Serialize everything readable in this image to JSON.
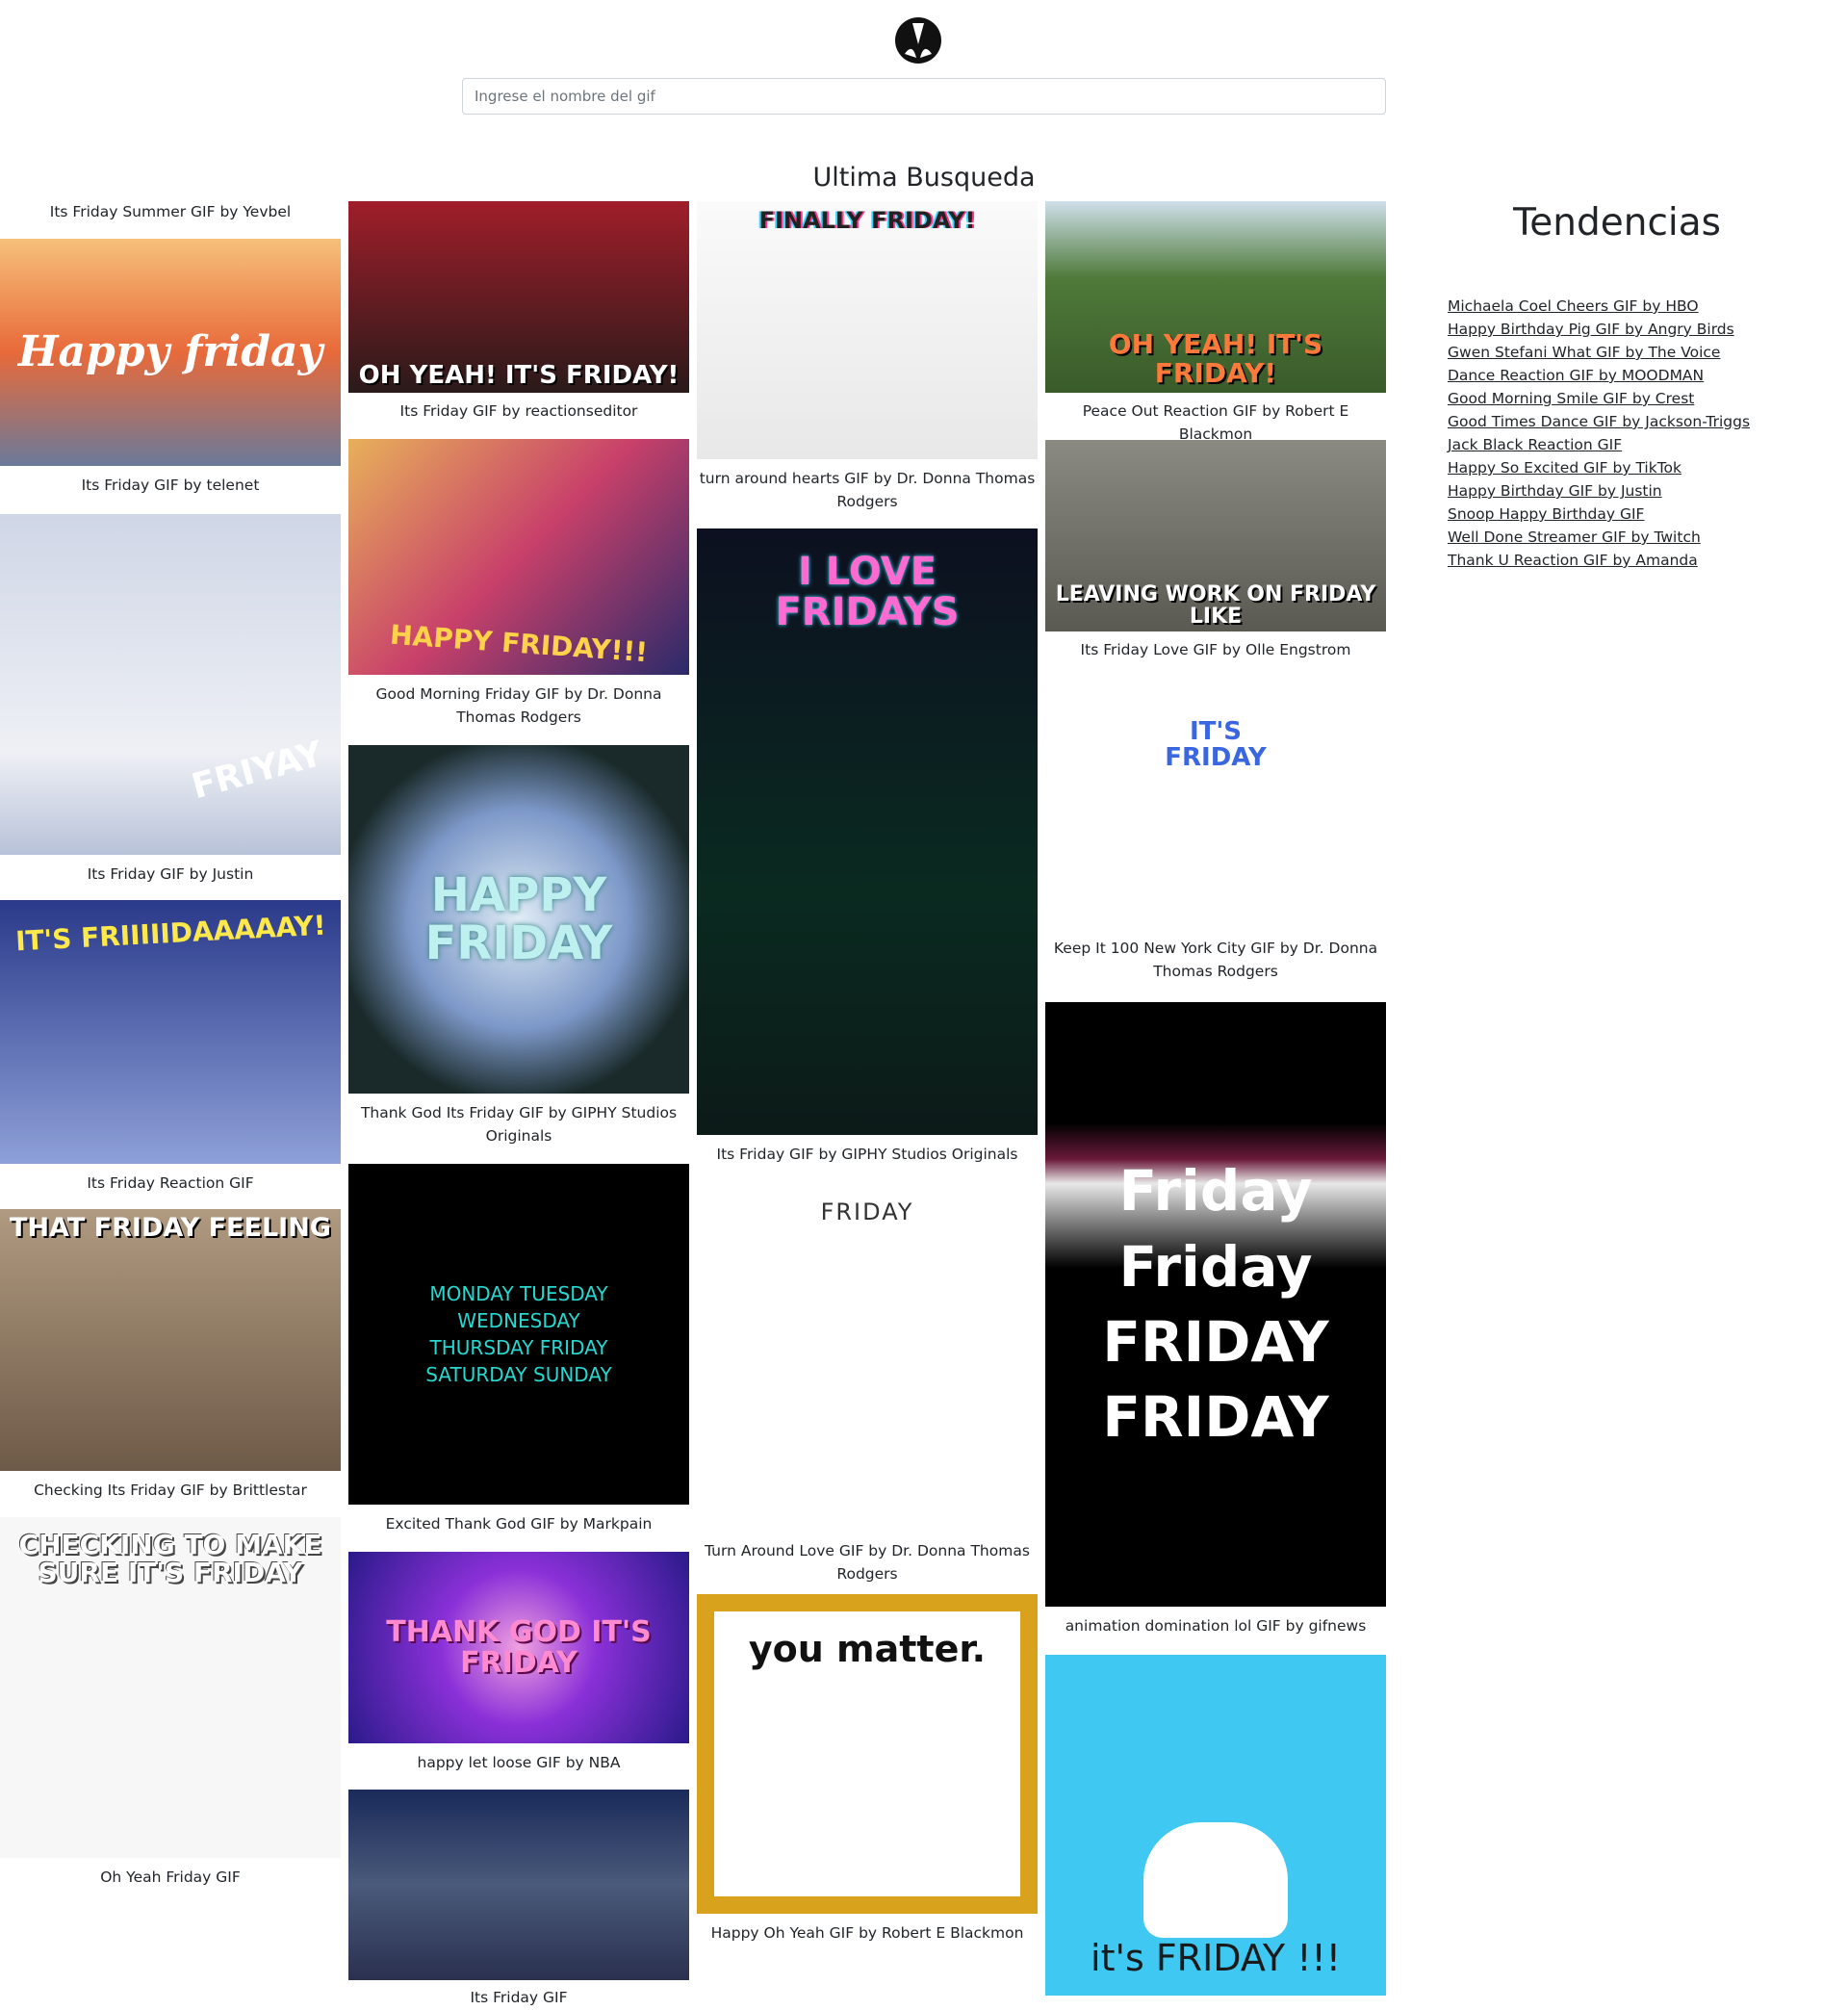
{
  "search": {
    "placeholder": "Ingrese el nombre del gif",
    "value": ""
  },
  "section_title": "Ultima Busqueda",
  "columns": [
    [
      {
        "caption": "Its Friday Summer GIF by Yevbel",
        "gif_text": "Happy friday",
        "bg": "#e8895a",
        "fg": "#ffffff"
      },
      {
        "caption": "Its Friday GIF by telenet",
        "gif_text": "FRIYAY",
        "bg": "#d9dde8",
        "fg": "#ffffff"
      },
      {
        "caption": "Its Friday GIF by Justin",
        "gif_text": "IT'S FRIIIIIDAAAAAY!",
        "bg": "#5a6bb8",
        "fg": "#ffe94a"
      },
      {
        "caption": "Its Friday Reaction GIF",
        "gif_text": "THAT FRIDAY FEELING",
        "bg": "#8a7562",
        "fg": "#ffffff"
      },
      {
        "caption": "Checking Its Friday GIF by Brittlestar",
        "gif_text": "CHECKING TO MAKE SURE IT'S FRIDAY",
        "bg": "#f7f7f7",
        "fg": "#444444"
      },
      {
        "caption": "Oh Yeah Friday GIF",
        "gif_text": "",
        "bg": "#ffffff",
        "fg": "#000000"
      }
    ],
    [
      {
        "caption": "Its Friday GIF by reactionseditor",
        "gif_text": "OH YEAH! IT'S FRIDAY!",
        "bg": "#3a1f1f",
        "fg": "#ffffff"
      },
      {
        "caption": "Good Morning Friday GIF by Dr. Donna Thomas Rodgers",
        "gif_text": "HAPPY FRIDAY!!!",
        "bg": "#c8506a",
        "fg": "#ffd24a"
      },
      {
        "caption": "Thank God Its Friday GIF by GIPHY Studios Originals",
        "gif_text": "HAPPY FRIDAY",
        "bg": "#6d86b8",
        "fg": "#bff0f0"
      },
      {
        "caption": "Excited Thank God GIF by Markpain",
        "gif_text": "MONDAY TUESDAY WEDNESDAY THURSDAY FRIDAY SATURDAY SUNDAY",
        "bg": "#000000",
        "fg": "#27d8d0"
      },
      {
        "caption": "happy let loose GIF by NBA",
        "gif_text": "THANK GOD IT'S FRIDAY",
        "bg": "#7a2bd6",
        "fg": "#ff8ad0"
      },
      {
        "caption": "Its Friday GIF",
        "gif_text": "",
        "bg": "#3b4a6e",
        "fg": "#ffffff"
      }
    ],
    [
      {
        "caption": "turn around hearts GIF by Dr. Donna Thomas Rodgers",
        "gif_text": "FINALLY FRIDAY!",
        "bg": "#f4f4f4",
        "fg": "#222222"
      },
      {
        "caption": "Its Friday GIF by GIPHY Studios Originals",
        "gif_text": "I LOVE FRIDAYS",
        "bg": "#0c1a18",
        "fg": "#ff6ad0"
      },
      {
        "caption": "Turn Around Love GIF by Dr. Donna Thomas Rodgers",
        "gif_text": "FRIDAY",
        "bg": "#ffffff",
        "fg": "#333333"
      },
      {
        "caption": "Happy Oh Yeah GIF by Robert E Blackmon",
        "gif_text": "you matter.",
        "bg": "#d9a21c",
        "fg": "#111111"
      }
    ],
    [
      {
        "caption": "Peace Out Reaction GIF by Robert E Blackmon",
        "gif_text": "OH YEAH! IT'S FRIDAY!",
        "bg": "#4f7a3a",
        "fg": "#ff7a3a"
      },
      {
        "caption": "Its Friday Love GIF by Olle Engstrom",
        "gif_text": "LEAVING WORK ON FRIDAY LIKE",
        "bg": "#6b6a64",
        "fg": "#ffffff"
      },
      {
        "caption": "Keep It 100 New York City GIF by Dr. Donna Thomas Rodgers",
        "gif_text": "IT'S FRIDAY",
        "bg": "#ffffff",
        "fg": "#3a66e0"
      },
      {
        "caption": "animation domination lol GIF by gifnews",
        "gif_text": "Friday Friday FRIDAY FRIDAY",
        "bg": "#000000",
        "fg": "#ffffff"
      },
      {
        "caption": "",
        "gif_text": "it's FRIDAY !!!",
        "bg": "#3ec8f2",
        "fg": "#1a1a1a"
      }
    ]
  ],
  "trends": {
    "title": "Tendencias",
    "items": [
      "Michaela Coel Cheers GIF by HBO",
      "Happy Birthday Pig GIF by Angry Birds",
      "Gwen Stefani What GIF by The Voice",
      "Dance Reaction GIF by MOODMAN",
      "Good Morning Smile GIF by Crest",
      "Good Times Dance GIF by Jackson-Triggs",
      "Jack Black Reaction GIF",
      "Happy So Excited GIF by TikTok",
      "Happy Birthday GIF by Justin",
      "Snoop Happy Birthday GIF",
      "Well Done Streamer GIF by Twitch",
      "Thank U Reaction GIF by Amanda"
    ]
  }
}
